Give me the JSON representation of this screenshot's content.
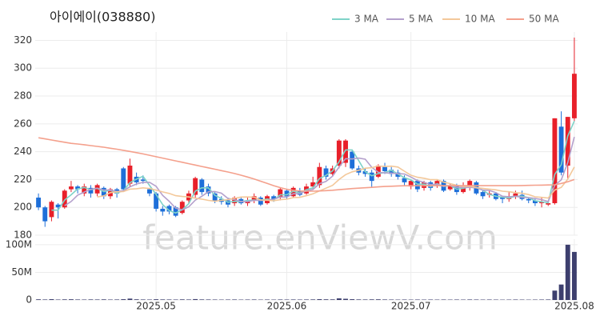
{
  "watermark": "feature.enViewV.com",
  "chart_data": [
    {
      "type": "candlestick",
      "title": "아이에이(038880)",
      "open": [
        207,
        200,
        193,
        202,
        200,
        213,
        215,
        210,
        214,
        210,
        214,
        208,
        213,
        228,
        217,
        222,
        220,
        213,
        210,
        199,
        201,
        200,
        196,
        205,
        209,
        220,
        215,
        210,
        206,
        205,
        203,
        206,
        203,
        205,
        207,
        203,
        208,
        207,
        212,
        208,
        212,
        210,
        215,
        216,
        228,
        224,
        230,
        232,
        240,
        228,
        226,
        225,
        222,
        229,
        227,
        225,
        221,
        215,
        219,
        214,
        218,
        216,
        219,
        213,
        216,
        211,
        214,
        218,
        211,
        209,
        210,
        207,
        206,
        208,
        209,
        206,
        205,
        203,
        202,
        203,
        258,
        230,
        264
      ],
      "high": [
        210,
        201,
        205,
        203,
        213,
        219,
        216,
        217,
        216,
        217,
        215,
        214,
        214,
        229,
        235,
        225,
        223,
        214,
        211,
        201,
        202,
        201,
        205,
        212,
        222,
        221,
        217,
        211,
        208,
        207,
        208,
        207,
        207,
        210,
        208,
        209,
        209,
        214,
        213,
        215,
        214,
        217,
        222,
        232,
        230,
        230,
        249,
        249,
        241,
        230,
        228,
        227,
        231,
        232,
        229,
        227,
        223,
        220,
        220,
        219,
        219,
        220,
        220,
        217,
        217,
        218,
        220,
        219,
        212,
        212,
        211,
        208,
        211,
        212,
        212,
        207,
        206,
        207,
        205,
        264,
        269,
        265,
        322
      ],
      "low": [
        198,
        186,
        190,
        192,
        199,
        211,
        210,
        208,
        207,
        208,
        206,
        206,
        207,
        212,
        215,
        216,
        217,
        208,
        197,
        194,
        195,
        193,
        195,
        203,
        207,
        209,
        208,
        203,
        202,
        200,
        201,
        202,
        201,
        203,
        201,
        202,
        204,
        205,
        206,
        207,
        208,
        209,
        213,
        214,
        220,
        222,
        228,
        229,
        227,
        223,
        222,
        214,
        221,
        224,
        222,
        220,
        216,
        213,
        211,
        212,
        212,
        214,
        211,
        212,
        209,
        210,
        212,
        209,
        206,
        207,
        205,
        203,
        204,
        206,
        205,
        203,
        201,
        200,
        201,
        202,
        223,
        220,
        262
      ],
      "close": [
        200,
        190,
        204,
        200,
        212,
        215,
        213,
        215,
        210,
        216,
        208,
        213,
        210,
        213,
        230,
        218,
        219,
        210,
        199,
        197,
        197,
        194,
        204,
        210,
        221,
        211,
        210,
        205,
        204,
        202,
        207,
        203,
        205,
        208,
        202,
        208,
        206,
        213,
        208,
        214,
        209,
        215,
        218,
        229,
        222,
        228,
        248,
        248,
        228,
        225,
        224,
        219,
        230,
        226,
        224,
        222,
        218,
        219,
        213,
        218,
        214,
        219,
        212,
        216,
        211,
        214,
        219,
        210,
        208,
        210,
        206,
        206,
        208,
        210,
        206,
        205,
        203,
        204,
        203,
        264,
        225,
        265,
        296
      ],
      "up_color": "#e8202a",
      "down_color": "#1e6fd9",
      "xlim": [
        -0.5,
        82.5
      ],
      "ylim": [
        180,
        326
      ],
      "yticks": [
        180,
        200,
        220,
        240,
        260,
        280,
        300,
        320
      ],
      "grid": true,
      "lines": [
        {
          "name": "3 MA",
          "color": "#7fd3c8",
          "values": [
            null,
            null,
            198,
            198,
            205.3,
            209,
            213.3,
            214.3,
            212.7,
            213.7,
            211.3,
            212.3,
            210.3,
            212,
            217.7,
            220.3,
            222.3,
            215.7,
            209.3,
            202,
            197.7,
            196,
            198.3,
            202.7,
            211.7,
            214,
            214,
            208.7,
            206.3,
            203.7,
            204.3,
            204,
            205,
            205.3,
            205,
            206,
            205.3,
            209,
            209,
            211.7,
            210.3,
            212.7,
            214,
            220.7,
            223,
            226.3,
            232.7,
            241.3,
            241.3,
            233.7,
            225.7,
            222.7,
            224.3,
            225,
            226.7,
            224,
            221.3,
            219.7,
            216.7,
            216.7,
            215,
            217,
            215,
            215.7,
            213,
            213.7,
            214.7,
            214.3,
            212.3,
            209.3,
            208,
            207.3,
            206.7,
            208,
            208,
            207,
            204.7,
            204,
            203.3,
            223.7,
            230.7,
            251.3,
            262
          ]
        },
        {
          "name": "5 MA",
          "color": "#b4a0cc",
          "values": [
            null,
            null,
            null,
            null,
            201.2,
            204.2,
            208.8,
            211,
            213,
            213.8,
            212.4,
            212.4,
            211.4,
            212,
            214.8,
            216.8,
            218,
            218,
            215.2,
            208.6,
            204.4,
            199.4,
            198.2,
            200.4,
            205.2,
            208,
            211.2,
            211.4,
            210.2,
            206.4,
            205.6,
            204.2,
            204.2,
            205,
            205,
            205.2,
            205.8,
            207.4,
            207.4,
            209.8,
            210,
            211.8,
            212.8,
            217,
            218.6,
            222.4,
            229,
            235,
            234.8,
            235.4,
            234.6,
            228.8,
            225.2,
            224.8,
            224.6,
            224.2,
            224,
            221.8,
            219.2,
            218,
            216.4,
            216.6,
            215.2,
            215.8,
            214.4,
            214.4,
            214.4,
            214,
            212.4,
            212.2,
            210.6,
            208,
            207.6,
            208,
            207.2,
            207,
            206.4,
            205.6,
            204.2,
            215.8,
            219.8,
            232.2,
            250.6
          ]
        },
        {
          "name": "10 MA",
          "color": "#f3c89a",
          "values": [
            null,
            null,
            null,
            null,
            null,
            null,
            null,
            null,
            null,
            207.5,
            208.3,
            210.6,
            211.2,
            211.3,
            213.1,
            213.4,
            214,
            213.5,
            212.4,
            211.1,
            210,
            208.4,
            207.8,
            207.5,
            206.6,
            205.9,
            205,
            204.5,
            205,
            205.5,
            206.5,
            207.4,
            207.5,
            207.3,
            205.4,
            205.1,
            204.7,
            205.5,
            205.9,
            207,
            207.2,
            208.4,
            209.7,
            211.8,
            213.8,
            215.8,
            220,
            223.5,
            225.5,
            226.6,
            228.1,
            228.5,
            229.7,
            229.4,
            229.6,
            229,
            226,
            223.1,
            221.6,
            220.9,
            219.9,
            219.9,
            218.1,
            217.1,
            215.8,
            215,
            215.1,
            214.2,
            213.7,
            213.1,
            212.6,
            211.6,
            211.2,
            210.6,
            210.1,
            209.2,
            207.6,
            207.2,
            206.7,
            212.5,
            214.4,
            220.3,
            229
          ]
        },
        {
          "name": "50 MA",
          "color": "#f4a08c",
          "values": [
            250,
            249.2,
            248.4,
            247.6,
            246.8,
            246,
            245.5,
            245,
            244.4,
            243.8,
            243.2,
            242.5,
            241.8,
            241,
            240.2,
            239.3,
            238.4,
            237.4,
            236.4,
            235.4,
            234.4,
            233.4,
            232.4,
            231.4,
            230.4,
            229.4,
            228.4,
            227.4,
            226.4,
            225.4,
            224.3,
            223.1,
            221.8,
            220.4,
            218.8,
            217.2,
            215.6,
            214.2,
            213,
            212.2,
            211.8,
            211.6,
            211.6,
            211.8,
            212,
            212.3,
            212.7,
            213.1,
            213.5,
            213.8,
            214.1,
            214.4,
            214.7,
            215,
            215.2,
            215.4,
            215.5,
            215.6,
            215.6,
            215.6,
            215.6,
            215.6,
            215.6,
            215.6,
            215.6,
            215.6,
            215.6,
            215.6,
            215.6,
            215.6,
            215.6,
            215.6,
            215.6,
            215.6,
            215.7,
            215.8,
            215.9,
            216,
            216.1,
            216.2,
            217.2,
            218.4,
            220
          ]
        }
      ]
    },
    {
      "type": "bar",
      "color": "#3d3f6e",
      "values": [
        1200000,
        900000,
        1500000,
        800000,
        1100000,
        1300000,
        900000,
        800000,
        1000000,
        900000,
        1100000,
        800000,
        900000,
        1400000,
        2500000,
        1200000,
        900000,
        800000,
        1300000,
        1000000,
        900000,
        800000,
        1100000,
        900000,
        1600000,
        1000000,
        900000,
        800000,
        700000,
        800000,
        900000,
        700000,
        800000,
        900000,
        700000,
        800000,
        700000,
        900000,
        800000,
        900000,
        800000,
        900000,
        1000000,
        1500000,
        1200000,
        1100000,
        3000000,
        2200000,
        1400000,
        1000000,
        900000,
        1100000,
        1200000,
        900000,
        800000,
        700000,
        800000,
        700000,
        800000,
        700000,
        800000,
        700000,
        800000,
        700000,
        800000,
        700000,
        900000,
        800000,
        700000,
        800000,
        700000,
        600000,
        700000,
        800000,
        700000,
        600000,
        700000,
        800000,
        900000,
        17000000,
        28000000,
        100000000,
        87000000
      ],
      "xlim": [
        -0.5,
        82.5
      ],
      "ylim": [
        0,
        110000000
      ],
      "yticks": [
        0,
        {
          "value": 50000000,
          "label": "50M"
        },
        {
          "value": 100000000,
          "label": "100M"
        }
      ],
      "xticks": [
        {
          "value": 18,
          "label": "2025.05"
        },
        {
          "value": 38,
          "label": "2025.06"
        },
        {
          "value": 57,
          "label": "2025.07"
        },
        {
          "value": 82,
          "label": "2025.08"
        }
      ]
    }
  ]
}
